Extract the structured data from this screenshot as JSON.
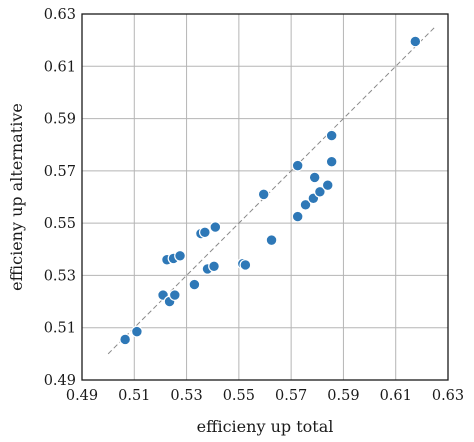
{
  "chart_data": {
    "type": "scatter",
    "title": "",
    "xlabel": "efficieny up total",
    "ylabel": "efficieny up alternative",
    "xlim": [
      0.49,
      0.63
    ],
    "ylim": [
      0.49,
      0.63
    ],
    "xticks": [
      0.49,
      0.51,
      0.53,
      0.55,
      0.57,
      0.59,
      0.61,
      0.63
    ],
    "yticks": [
      0.49,
      0.51,
      0.53,
      0.55,
      0.57,
      0.59,
      0.61,
      0.63
    ],
    "xtick_labels": [
      "0.49",
      "0.51",
      "0.53",
      "0.55",
      "0.57",
      "0.59",
      "0.61",
      "0.63"
    ],
    "ytick_labels": [
      "0.49",
      "0.51",
      "0.53",
      "0.55",
      "0.57",
      "0.59",
      "0.61",
      "0.63"
    ],
    "grid": true,
    "reference_line": {
      "style": "dashed",
      "x": [
        0.5,
        0.625
      ],
      "y": [
        0.5,
        0.625
      ]
    },
    "marker_color": "#2e78b7",
    "points": [
      {
        "x": 0.5065,
        "y": 0.5055
      },
      {
        "x": 0.511,
        "y": 0.5085
      },
      {
        "x": 0.521,
        "y": 0.5225
      },
      {
        "x": 0.5225,
        "y": 0.536
      },
      {
        "x": 0.5235,
        "y": 0.52
      },
      {
        "x": 0.525,
        "y": 0.5365
      },
      {
        "x": 0.5255,
        "y": 0.5225
      },
      {
        "x": 0.5275,
        "y": 0.5375
      },
      {
        "x": 0.533,
        "y": 0.5265
      },
      {
        "x": 0.5355,
        "y": 0.546
      },
      {
        "x": 0.537,
        "y": 0.5465
      },
      {
        "x": 0.538,
        "y": 0.5325
      },
      {
        "x": 0.5405,
        "y": 0.5335
      },
      {
        "x": 0.541,
        "y": 0.5485
      },
      {
        "x": 0.5515,
        "y": 0.5345
      },
      {
        "x": 0.5525,
        "y": 0.534
      },
      {
        "x": 0.5595,
        "y": 0.561
      },
      {
        "x": 0.5625,
        "y": 0.5435
      },
      {
        "x": 0.5725,
        "y": 0.5525
      },
      {
        "x": 0.5725,
        "y": 0.572
      },
      {
        "x": 0.5755,
        "y": 0.557
      },
      {
        "x": 0.5785,
        "y": 0.5595
      },
      {
        "x": 0.579,
        "y": 0.5675
      },
      {
        "x": 0.581,
        "y": 0.562
      },
      {
        "x": 0.584,
        "y": 0.5645
      },
      {
        "x": 0.5855,
        "y": 0.5835
      },
      {
        "x": 0.5855,
        "y": 0.5735
      },
      {
        "x": 0.6175,
        "y": 0.6195
      }
    ]
  }
}
